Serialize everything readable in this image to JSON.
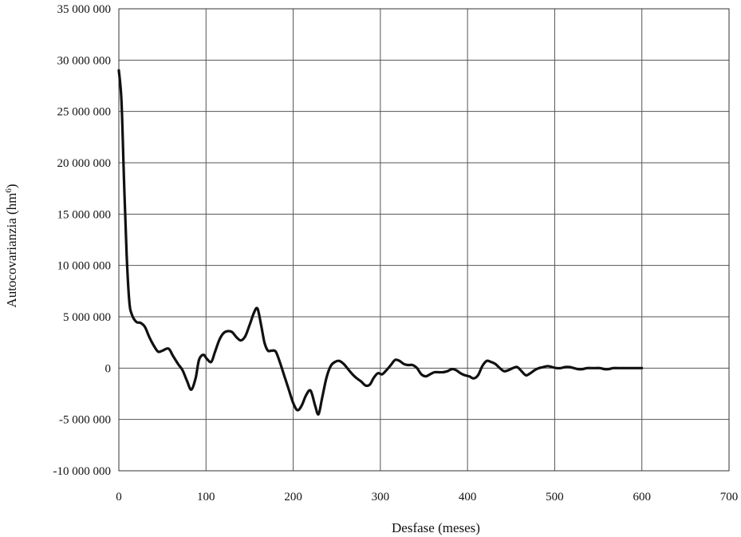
{
  "chart_data": {
    "type": "line",
    "title": "",
    "xlabel": "Desfase (meses)",
    "ylabel_main": "Autocovarianzia (hm",
    "ylabel_sup": "6",
    "ylabel_close": ")",
    "xlim": [
      0,
      700
    ],
    "ylim": [
      -10000000,
      35000000
    ],
    "xticks": [
      0,
      100,
      200,
      300,
      400,
      500,
      600,
      700
    ],
    "xtick_labels": [
      "0",
      "100",
      "200",
      "300",
      "400",
      "500",
      "600",
      "700"
    ],
    "yticks": [
      -10000000,
      -5000000,
      0,
      5000000,
      10000000,
      15000000,
      20000000,
      25000000,
      30000000,
      35000000
    ],
    "ytick_labels": [
      "-10 000 000",
      "-5 000 000",
      "0",
      "5 000 000",
      "10 000 000",
      "15 000 000",
      "20 000 000",
      "25 000 000",
      "30 000 000",
      "35 000 000"
    ],
    "grid": true,
    "legend": "none",
    "line_color": "#111111",
    "series": [
      {
        "x": [
          0,
          3,
          6,
          9,
          12,
          15,
          20,
          25,
          30,
          35,
          40,
          45,
          50,
          57,
          62,
          68,
          73,
          78,
          83,
          88,
          92,
          97,
          101,
          106,
          110,
          115,
          120,
          125,
          130,
          135,
          140,
          145,
          150,
          155,
          159,
          163,
          167,
          171,
          175,
          180,
          185,
          190,
          195,
          200,
          205,
          210,
          215,
          220,
          225,
          229,
          233,
          238,
          243,
          248,
          253,
          258,
          263,
          268,
          273,
          278,
          283,
          288,
          292,
          297,
          302,
          307,
          312,
          317,
          322,
          327,
          332,
          337,
          342,
          347,
          352,
          357,
          362,
          367,
          372,
          377,
          382,
          387,
          392,
          397,
          402,
          407,
          412,
          417,
          422,
          427,
          432,
          437,
          442,
          447,
          452,
          457,
          462,
          467,
          472,
          477,
          482,
          487,
          492,
          497,
          502,
          507,
          512,
          517,
          522,
          527,
          532,
          537,
          542,
          547,
          552,
          557,
          562,
          567,
          572,
          577,
          582,
          587,
          592,
          597,
          600
        ],
        "y": [
          29000000,
          26000000,
          18000000,
          11000000,
          6500000,
          5200000,
          4500000,
          4400000,
          4000000,
          3000000,
          2200000,
          1600000,
          1700000,
          1900000,
          1200000,
          400000,
          -200000,
          -1200000,
          -2100000,
          -1000000,
          800000,
          1300000,
          900000,
          600000,
          1500000,
          2700000,
          3400000,
          3600000,
          3500000,
          3000000,
          2700000,
          3100000,
          4200000,
          5400000,
          5800000,
          4300000,
          2500000,
          1700000,
          1700000,
          1600000,
          500000,
          -800000,
          -2100000,
          -3400000,
          -4100000,
          -3600000,
          -2600000,
          -2200000,
          -3600000,
          -4500000,
          -3000000,
          -1000000,
          200000,
          600000,
          700000,
          400000,
          -100000,
          -600000,
          -1000000,
          -1300000,
          -1700000,
          -1600000,
          -1000000,
          -500000,
          -600000,
          -200000,
          300000,
          800000,
          700000,
          400000,
          300000,
          300000,
          0,
          -600000,
          -800000,
          -600000,
          -400000,
          -400000,
          -400000,
          -300000,
          -100000,
          -200000,
          -500000,
          -700000,
          -800000,
          -1000000,
          -700000,
          200000,
          700000,
          600000,
          400000,
          0,
          -300000,
          -200000,
          0,
          100000,
          -300000,
          -700000,
          -500000,
          -200000,
          0,
          100000,
          200000,
          100000,
          0,
          0,
          100000,
          100000,
          0,
          -100000,
          -100000,
          0,
          0,
          0,
          0,
          -100000,
          -100000,
          0,
          0,
          0,
          0,
          0,
          0,
          0,
          0
        ]
      }
    ]
  }
}
